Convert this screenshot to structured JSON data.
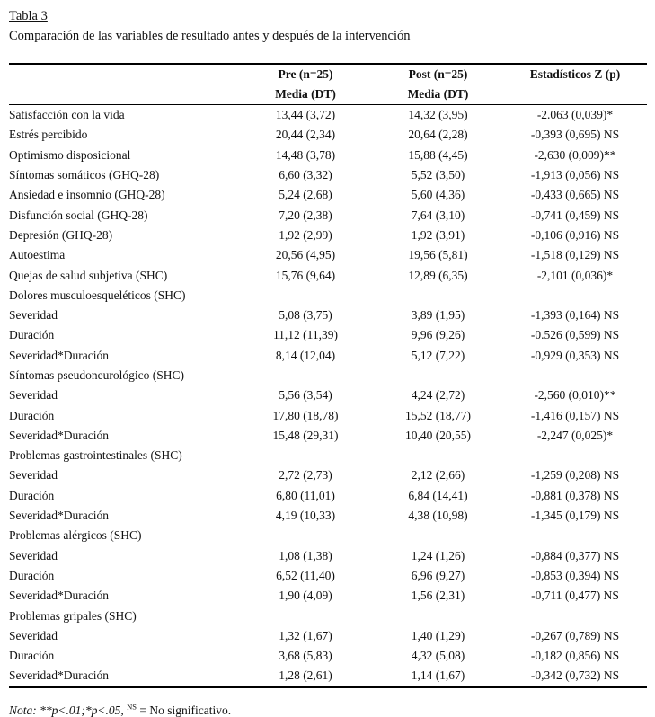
{
  "table_label": "Tabla 3",
  "caption": "Comparación de las variables de resultado antes y después de la intervención",
  "columns": {
    "pre": "Pre (n=25)",
    "post": "Post (n=25)",
    "z": "Estadísticos Z (p)",
    "media_dt": "Media (DT)"
  },
  "rows": [
    {
      "label": "Satisfacción con la vida",
      "pre": "13,44 (3,72)",
      "post": "14,32 (3,95)",
      "z": "-2.063 (0,039)*",
      "section": false
    },
    {
      "label": "Estrés percibido",
      "pre": "20,44 (2,34)",
      "post": "20,64 (2,28)",
      "z": "-0,393 (0,695) NS",
      "section": false
    },
    {
      "label": "Optimismo disposicional",
      "pre": "14,48 (3,78)",
      "post": "15,88 (4,45)",
      "z": "-2,630 (0,009)**",
      "section": false
    },
    {
      "label": "Síntomas somáticos (GHQ-28)",
      "pre": "6,60 (3,32)",
      "post": "5,52 (3,50)",
      "z": "-1,913 (0,056) NS",
      "section": false
    },
    {
      "label": "Ansiedad e insomnio (GHQ-28)",
      "pre": "5,24 (2,68)",
      "post": "5,60 (4,36)",
      "z": "-0,433 (0,665) NS",
      "section": false
    },
    {
      "label": "Disfunción social (GHQ-28)",
      "pre": "7,20 (2,38)",
      "post": "7,64 (3,10)",
      "z": "-0,741 (0,459) NS",
      "section": false
    },
    {
      "label": "Depresión (GHQ-28)",
      "pre": "1,92 (2,99)",
      "post": "1,92 (3,91)",
      "z": "-0,106 (0,916) NS",
      "section": false
    },
    {
      "label": "Autoestima",
      "pre": "20,56 (4,95)",
      "post": "19,56 (5,81)",
      "z": "-1,518 (0,129) NS",
      "section": false
    },
    {
      "label": "Quejas de salud subjetiva (SHC)",
      "pre": "15,76 (9,64)",
      "post": "12,89 (6,35)",
      "z": "-2,101 (0,036)*",
      "section": false
    },
    {
      "label": "Dolores musculoesqueléticos (SHC)",
      "pre": "",
      "post": "",
      "z": "",
      "section": true
    },
    {
      "label": "Severidad",
      "pre": "5,08 (3,75)",
      "post": "3,89 (1,95)",
      "z": "-1,393 (0,164) NS",
      "section": false
    },
    {
      "label": "Duración",
      "pre": "11,12 (11,39)",
      "post": "9,96 (9,26)",
      "z": "-0.526 (0,599) NS",
      "section": false
    },
    {
      "label": "Severidad*Duración",
      "pre": "8,14 (12,04)",
      "post": "5,12 (7,22)",
      "z": "-0,929 (0,353) NS",
      "section": false
    },
    {
      "label": "Síntomas pseudoneurológico (SHC)",
      "pre": "",
      "post": "",
      "z": "",
      "section": true
    },
    {
      "label": "Severidad",
      "pre": "5,56 (3,54)",
      "post": "4,24 (2,72)",
      "z": "-2,560 (0,010)**",
      "section": false
    },
    {
      "label": "Duración",
      "pre": "17,80 (18,78)",
      "post": "15,52 (18,77)",
      "z": "-1,416 (0,157) NS",
      "section": false
    },
    {
      "label": "Severidad*Duración",
      "pre": "15,48 (29,31)",
      "post": "10,40 (20,55)",
      "z": "-2,247 (0,025)*",
      "section": false
    },
    {
      "label": "Problemas gastrointestinales (SHC)",
      "pre": "",
      "post": "",
      "z": "",
      "section": true
    },
    {
      "label": "Severidad",
      "pre": "2,72 (2,73)",
      "post": "2,12 (2,66)",
      "z": "-1,259 (0,208) NS",
      "section": false
    },
    {
      "label": "Duración",
      "pre": "6,80 (11,01)",
      "post": "6,84 (14,41)",
      "z": "-0,881 (0,378) NS",
      "section": false
    },
    {
      "label": "Severidad*Duración",
      "pre": "4,19 (10,33)",
      "post": "4,38 (10,98)",
      "z": "-1,345 (0,179) NS",
      "section": false
    },
    {
      "label": "Problemas alérgicos (SHC)",
      "pre": "",
      "post": "",
      "z": "",
      "section": true
    },
    {
      "label": "Severidad",
      "pre": "1,08 (1,38)",
      "post": "1,24 (1,26)",
      "z": "-0,884 (0,377) NS",
      "section": false
    },
    {
      "label": "Duración",
      "pre": "6,52 (11,40)",
      "post": "6,96 (9,27)",
      "z": "-0,853 (0,394) NS",
      "section": false
    },
    {
      "label": "Severidad*Duración",
      "pre": "1,90 (4,09)",
      "post": "1,56 (2,31)",
      "z": "-0,711 (0,477) NS",
      "section": false
    },
    {
      "label": "Problemas gripales (SHC)",
      "pre": "",
      "post": "",
      "z": "",
      "section": true
    },
    {
      "label": "Severidad",
      "pre": "1,32 (1,67)",
      "post": "1,40 (1,29)",
      "z": "-0,267 (0,789) NS",
      "section": false
    },
    {
      "label": "Duración",
      "pre": "3,68 (5,83)",
      "post": "4,32 (5,08)",
      "z": "-0,182 (0,856) NS",
      "section": false
    },
    {
      "label": "Severidad*Duración",
      "pre": "1,28 (2,61)",
      "post": "1,14 (1,67)",
      "z": "-0,342 (0,732) NS",
      "section": false
    }
  ],
  "note": {
    "prefix": "Nota:",
    "significance": "**p<.01;*p<.05,",
    "ns": "NS",
    "definition": "= No significativo."
  }
}
